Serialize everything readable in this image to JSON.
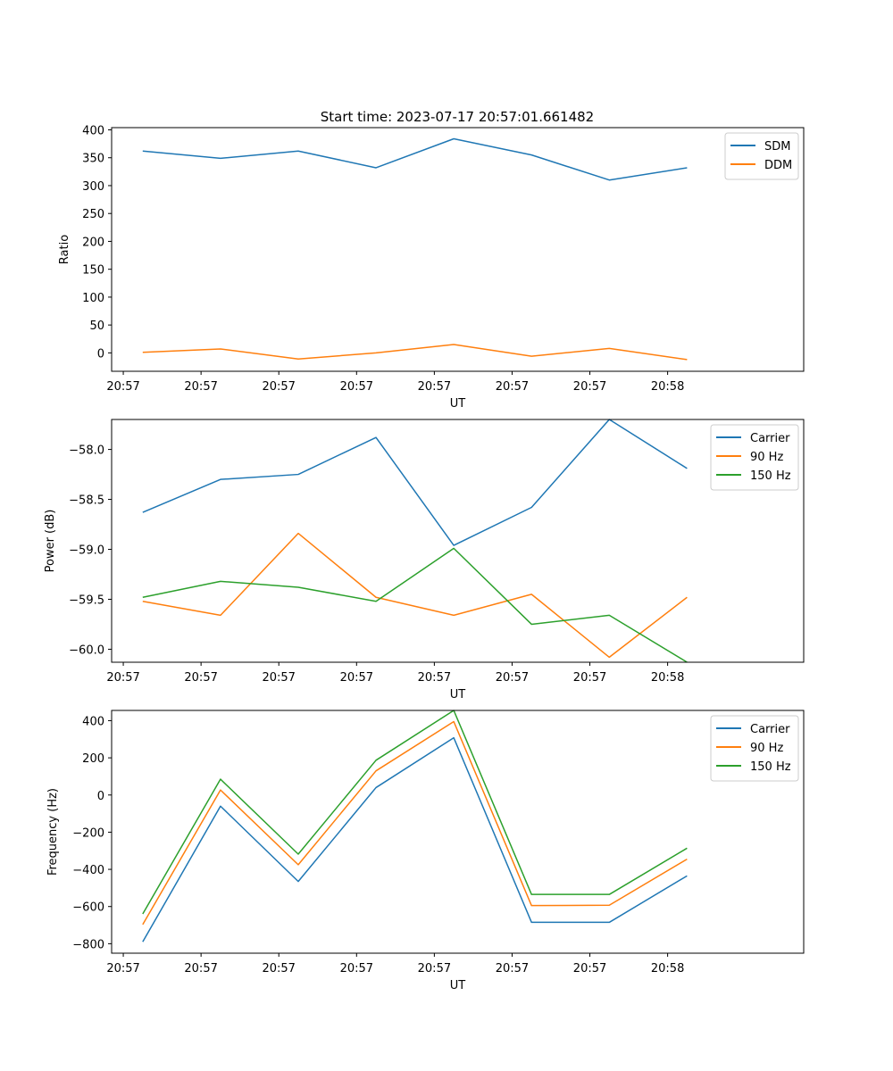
{
  "figure_title": "Start time: 2023-07-17 20:57:01.661482",
  "colors": {
    "blue": "#1f77b4",
    "orange": "#ff7f0e",
    "green": "#2ca02c"
  },
  "chart_data": [
    {
      "type": "line",
      "title": "Start time: 2023-07-17 20:57:01.661482",
      "xlabel": "UT",
      "ylabel": "Ratio",
      "x_ticks": [
        "20:57",
        "20:57",
        "20:57",
        "20:57",
        "20:57",
        "20:57",
        "20:57",
        "20:58"
      ],
      "x_index": [
        0.75,
        1.75,
        2.75,
        3.75,
        4.75,
        5.75,
        6.75,
        7.75
      ],
      "xlim": [
        0.6,
        9.5
      ],
      "ylim": [
        -33,
        404
      ],
      "y_ticks": [
        0,
        50,
        100,
        150,
        200,
        250,
        300,
        350,
        400
      ],
      "legend_position": "upper-right",
      "series": [
        {
          "name": "SDM",
          "color": "#1f77b4",
          "values": [
            362,
            349,
            362,
            332,
            384,
            355,
            310,
            332
          ]
        },
        {
          "name": "DDM",
          "color": "#ff7f0e",
          "values": [
            1,
            7,
            -11,
            0,
            15,
            -6,
            8,
            -12
          ]
        }
      ]
    },
    {
      "type": "line",
      "xlabel": "UT",
      "ylabel": "Power (dB)",
      "x_ticks": [
        "20:57",
        "20:57",
        "20:57",
        "20:57",
        "20:57",
        "20:57",
        "20:57",
        "20:58"
      ],
      "x_index": [
        0.75,
        1.75,
        2.75,
        3.75,
        4.75,
        5.75,
        6.75,
        7.75
      ],
      "xlim": [
        0.6,
        9.5
      ],
      "ylim": [
        -60.13,
        -57.7
      ],
      "y_ticks": [
        -60.0,
        -59.5,
        -59.0,
        -58.5,
        -58.0
      ],
      "y_tick_labels": [
        "−60.0",
        "−59.5",
        "−59.0",
        "−58.5",
        "−58.0"
      ],
      "legend_position": "upper-right",
      "series": [
        {
          "name": "Carrier",
          "color": "#1f77b4",
          "values": [
            -58.63,
            -58.3,
            -58.25,
            -57.88,
            -58.96,
            -58.58,
            -57.7,
            -58.19
          ]
        },
        {
          "name": "90 Hz",
          "color": "#ff7f0e",
          "values": [
            -59.52,
            -59.66,
            -58.84,
            -59.48,
            -59.66,
            -59.45,
            -60.08,
            -59.48
          ]
        },
        {
          "name": "150 Hz",
          "color": "#2ca02c",
          "values": [
            -59.48,
            -59.32,
            -59.38,
            -59.52,
            -58.99,
            -59.75,
            -59.66,
            -60.13
          ]
        }
      ]
    },
    {
      "type": "line",
      "xlabel": "UT",
      "ylabel": "Frequency (Hz)",
      "x_ticks": [
        "20:57",
        "20:57",
        "20:57",
        "20:57",
        "20:57",
        "20:57",
        "20:57",
        "20:58"
      ],
      "x_index": [
        0.75,
        1.75,
        2.75,
        3.75,
        4.75,
        5.75,
        6.75,
        7.75
      ],
      "xlim": [
        0.6,
        9.5
      ],
      "ylim": [
        -851,
        455
      ],
      "y_ticks": [
        -800,
        -600,
        -400,
        -200,
        0,
        200,
        400
      ],
      "y_tick_labels": [
        "−800",
        "−600",
        "−400",
        "−200",
        "0",
        "200",
        "400"
      ],
      "legend_position": "upper-right",
      "series": [
        {
          "name": "Carrier",
          "color": "#1f77b4",
          "values": [
            -790,
            -60,
            -465,
            40,
            308,
            -685,
            -685,
            -435
          ]
        },
        {
          "name": "90 Hz",
          "color": "#ff7f0e",
          "values": [
            -697,
            27,
            -375,
            130,
            395,
            -595,
            -593,
            -345
          ]
        },
        {
          "name": "150 Hz",
          "color": "#2ca02c",
          "values": [
            -640,
            85,
            -318,
            187,
            455,
            -535,
            -535,
            -286
          ]
        }
      ]
    }
  ]
}
